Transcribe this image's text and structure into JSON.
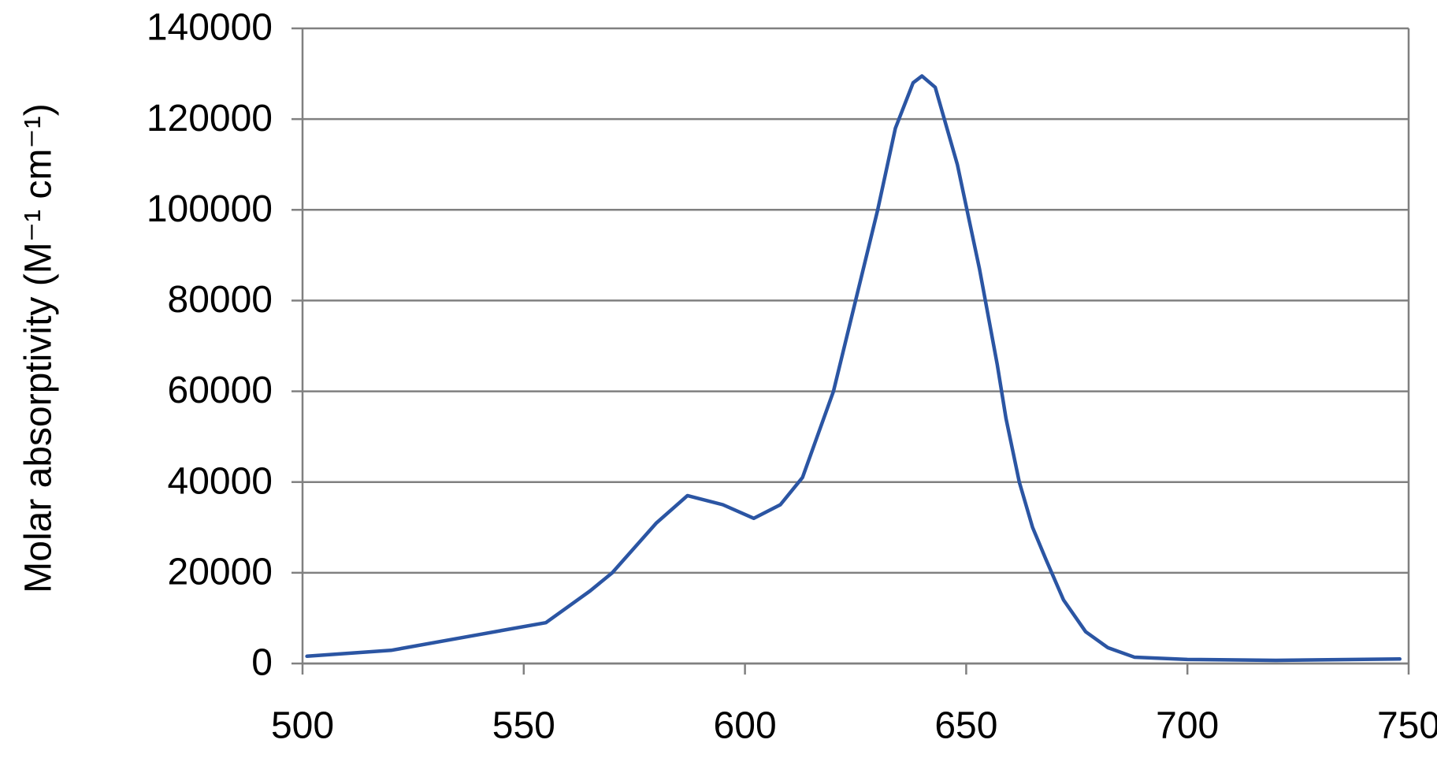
{
  "chart_data": {
    "type": "line",
    "y_label": "Molar absorptivity (M⁻¹ cm⁻¹)",
    "x": [
      501,
      520,
      540,
      555,
      565,
      570,
      580,
      587,
      595,
      602,
      608,
      613,
      620,
      625,
      630,
      634,
      638,
      640,
      643,
      648,
      653,
      657,
      659,
      662,
      665,
      668,
      672,
      677,
      682,
      688,
      700,
      720,
      748
    ],
    "series": [
      {
        "color": "#2b55a3",
        "values": [
          1600,
          2900,
          6400,
          9000,
          16000,
          20000,
          31000,
          37000,
          35000,
          32000,
          35000,
          41000,
          60000,
          80000,
          100000,
          118000,
          128000,
          129500,
          127000,
          110000,
          87000,
          66000,
          54000,
          40000,
          30000,
          23000,
          14000,
          7000,
          3500,
          1400,
          900,
          700,
          1000
        ]
      }
    ],
    "xlim": [
      500,
      750
    ],
    "xticks": [
      500,
      550,
      600,
      650,
      700,
      750
    ],
    "ylim": [
      0,
      140000
    ],
    "yticks": [
      0,
      20000,
      40000,
      60000,
      80000,
      100000,
      120000,
      140000
    ],
    "grid": true
  }
}
